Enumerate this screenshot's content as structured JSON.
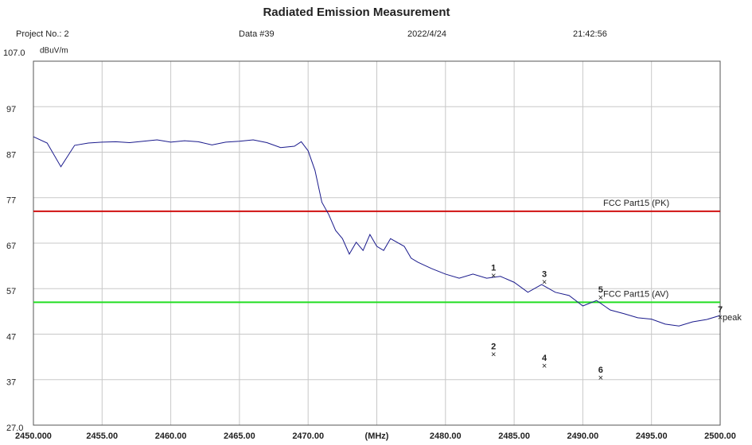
{
  "chart_data": {
    "type": "line",
    "title": "Radiated Emission Measurement",
    "info": [
      "Project No.: 2",
      "Data #39",
      "2022/4/24",
      "21:42:56"
    ],
    "y_label": "dBuV/m",
    "xlim": [
      2450,
      2500
    ],
    "ylim": [
      27,
      107
    ],
    "xticks": [
      {
        "value": 2450,
        "label": "2450.000"
      },
      {
        "value": 2455,
        "label": "2455.00"
      },
      {
        "value": 2460,
        "label": "2460.00"
      },
      {
        "value": 2465,
        "label": "2465.00"
      },
      {
        "value": 2470,
        "label": "2470.00"
      },
      {
        "value": 2475,
        "label": "(MHz)"
      },
      {
        "value": 2480,
        "label": "2480.00"
      },
      {
        "value": 2485,
        "label": "2485.00"
      },
      {
        "value": 2490,
        "label": "2490.00"
      },
      {
        "value": 2495,
        "label": "2495.00"
      },
      {
        "value": 2500,
        "label": "2500.00"
      }
    ],
    "yticks": [
      {
        "value": 27,
        "label": "27.0"
      },
      37,
      47,
      57,
      67,
      77,
      87,
      97,
      {
        "value": 107,
        "label": "107.0"
      }
    ],
    "grid": true,
    "series": [
      {
        "color": "#1a1a8c",
        "x": [
          2450,
          2451,
          2452,
          2453,
          2454,
          2455,
          2456,
          2457,
          2458,
          2459,
          2460,
          2461,
          2462,
          2463,
          2464,
          2465,
          2466,
          2467,
          2468,
          2469,
          2469.5,
          2470,
          2470.5,
          2471,
          2471.5,
          2472,
          2472.5,
          2473,
          2473.5,
          2474,
          2474.5,
          2475,
          2475.5,
          2476,
          2477,
          2477.5,
          2478,
          2479,
          2480,
          2481,
          2482,
          2483,
          2484,
          2485,
          2486,
          2487,
          2488,
          2489,
          2490,
          2491,
          2492,
          2493,
          2494,
          2495,
          2496,
          2497,
          2498,
          2499,
          2500
        ],
        "values": [
          90.4,
          89,
          83.8,
          88.5,
          89,
          89.2,
          89.3,
          89.1,
          89.4,
          89.7,
          89.2,
          89.5,
          89.3,
          88.6,
          89.2,
          89.4,
          89.7,
          89.1,
          88,
          88.3,
          89.3,
          87.3,
          83,
          76,
          73.3,
          69.8,
          68,
          64.6,
          67.2,
          65.4,
          68.9,
          66.3,
          65.4,
          68,
          66.3,
          63.7,
          62.8,
          61.4,
          60.2,
          59.3,
          60.2,
          59.3,
          59.7,
          58.4,
          56.2,
          57.9,
          56.2,
          55.5,
          53.2,
          54.4,
          52.3,
          51.5,
          50.6,
          50.3,
          49.2,
          48.8,
          49.7,
          50.2,
          51.1
        ]
      }
    ],
    "limits": [
      {
        "name": "FCC Part15 (PK)",
        "value": 74,
        "color": "#d01010"
      },
      {
        "name": "FCC Part15 (AV)",
        "value": 54,
        "color": "#22dd22"
      }
    ],
    "markers": {
      "labels": [
        "1",
        "2",
        "3",
        "4",
        "5",
        "6",
        "7"
      ],
      "x": [
        2483.5,
        2483.5,
        2487.2,
        2487.2,
        2491.3,
        2491.3,
        2500
      ],
      "values": [
        59.7,
        42.4,
        58.3,
        39.9,
        54.9,
        37.3,
        50.6
      ],
      "note": "peak"
    }
  }
}
